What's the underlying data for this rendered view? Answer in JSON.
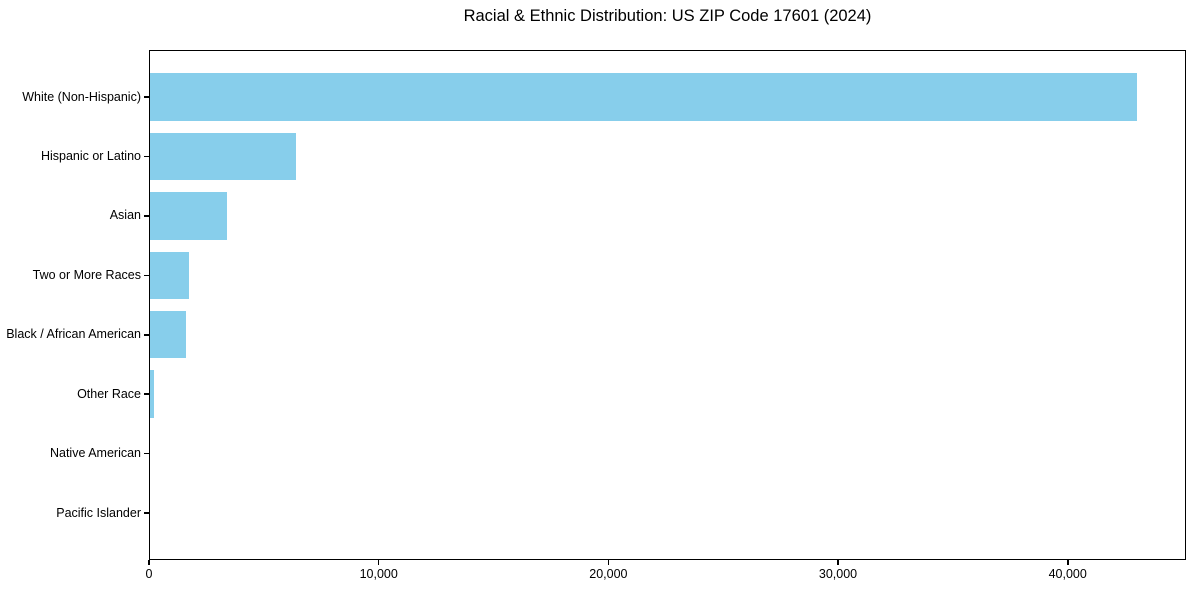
{
  "title": "Racial & Ethnic Distribution: US ZIP Code 17601 (2024)",
  "colors": {
    "bar": "#87CEEB",
    "axis": "#000000",
    "background": "#ffffff",
    "text": "#000000"
  },
  "chart_data": {
    "type": "bar",
    "orientation": "horizontal",
    "title": "Racial & Ethnic Distribution: US ZIP Code 17601 (2024)",
    "categories": [
      "White (Non-Hispanic)",
      "Hispanic or Latino",
      "Asian",
      "Two or More Races",
      "Black / African American",
      "Other Race",
      "Native American",
      "Pacific Islander"
    ],
    "values": [
      43000,
      6400,
      3400,
      1750,
      1600,
      200,
      40,
      15
    ],
    "bar_color": "#87CEEB",
    "xlabel": "",
    "ylabel": "",
    "xlim": [
      0,
      45150
    ],
    "x_ticks": [
      0,
      10000,
      20000,
      30000,
      40000
    ],
    "x_tick_labels": [
      "0",
      "10,000",
      "20,000",
      "30,000",
      "40,000"
    ],
    "grid": false,
    "legend": null
  }
}
